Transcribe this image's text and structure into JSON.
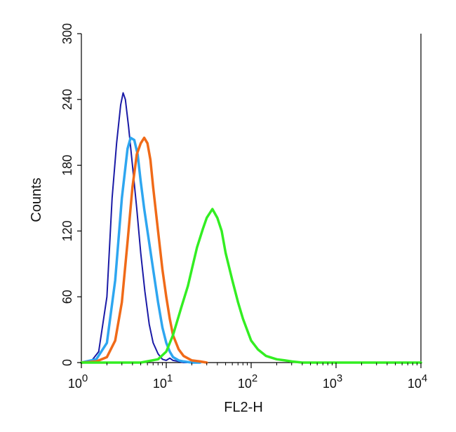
{
  "chart_data": {
    "type": "line",
    "title": "",
    "xlabel": "FL2-H",
    "ylabel": "Counts",
    "xscale": "log",
    "xlim": [
      1,
      10000
    ],
    "ylim": [
      0,
      300
    ],
    "x_ticks": [
      {
        "value": 1,
        "base": "10",
        "exp": "0"
      },
      {
        "value": 10,
        "base": "10",
        "exp": "1"
      },
      {
        "value": 100,
        "base": "10",
        "exp": "2"
      },
      {
        "value": 1000,
        "base": "10",
        "exp": "3"
      },
      {
        "value": 10000,
        "base": "10",
        "exp": "4"
      }
    ],
    "y_ticks": [
      {
        "value": 0,
        "label": "0"
      },
      {
        "value": 60,
        "label": "60"
      },
      {
        "value": 120,
        "label": "120"
      },
      {
        "value": 180,
        "label": "180"
      },
      {
        "value": 240,
        "label": "240"
      },
      {
        "value": 300,
        "label": "300"
      }
    ],
    "grid": false,
    "legend": "none",
    "series": [
      {
        "color": "#1a1aa6",
        "x": [
          1.0,
          1.3,
          1.6,
          2.0,
          2.3,
          2.6,
          2.9,
          3.1,
          3.3,
          3.6,
          4.0,
          4.5,
          5.0,
          5.6,
          6.3,
          7.0,
          8.0,
          9.0,
          10,
          11,
          12,
          14,
          16,
          20
        ],
        "values": [
          0,
          1,
          10,
          60,
          150,
          200,
          235,
          246,
          240,
          215,
          180,
          140,
          100,
          65,
          35,
          18,
          8,
          3,
          2,
          4,
          2,
          1,
          0,
          0
        ]
      },
      {
        "color": "#2ea6f0",
        "x": [
          1.0,
          1.5,
          2.0,
          2.5,
          3.0,
          3.5,
          3.8,
          4.2,
          4.6,
          5.0,
          5.5,
          6.0,
          7.0,
          8.0,
          9.0,
          10,
          11,
          12,
          14,
          16,
          20,
          25
        ],
        "values": [
          0,
          3,
          18,
          75,
          150,
          195,
          205,
          203,
          190,
          165,
          140,
          120,
          85,
          55,
          32,
          18,
          10,
          5,
          2,
          1,
          0,
          0
        ]
      },
      {
        "color": "#f06a18",
        "x": [
          1.0,
          1.5,
          2.0,
          2.5,
          3.0,
          3.5,
          4.0,
          4.5,
          5.0,
          5.5,
          6.0,
          6.5,
          7.0,
          8.0,
          9.0,
          10,
          11,
          12,
          14,
          16,
          20,
          25,
          30
        ],
        "values": [
          0,
          1,
          5,
          20,
          55,
          110,
          160,
          190,
          200,
          205,
          200,
          185,
          160,
          120,
          85,
          60,
          40,
          25,
          12,
          6,
          2,
          1,
          0
        ]
      },
      {
        "color": "#33ee22",
        "x": [
          1.0,
          5.0,
          8.0,
          10,
          12,
          15,
          18,
          20,
          23,
          27,
          30,
          35,
          40,
          45,
          50,
          60,
          70,
          80,
          100,
          120,
          150,
          200,
          250,
          300,
          400,
          600,
          1000,
          3000,
          10000
        ],
        "values": [
          0,
          0,
          3,
          10,
          25,
          50,
          70,
          85,
          105,
          122,
          132,
          140,
          132,
          120,
          100,
          75,
          55,
          40,
          20,
          12,
          6,
          3,
          2,
          1,
          0,
          0,
          0,
          0,
          0
        ]
      }
    ]
  }
}
